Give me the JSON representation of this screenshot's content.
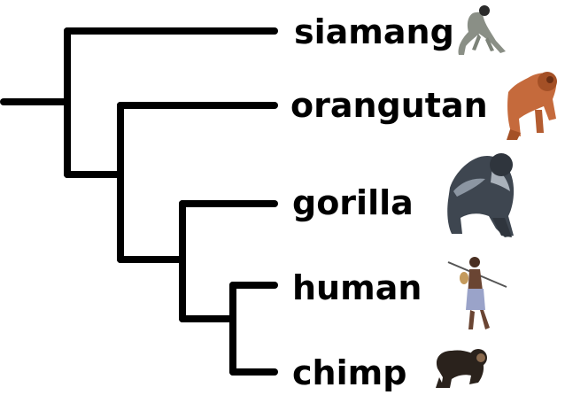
{
  "tree": {
    "line_color": "#000000",
    "taxa": [
      {
        "label": "siamang",
        "icon": "siamang-gibbon-illustration"
      },
      {
        "label": "orangutan",
        "icon": "orangutan-illustration"
      },
      {
        "label": "gorilla",
        "icon": "gorilla-illustration"
      },
      {
        "label": "human",
        "icon": "human-hunter-illustration"
      },
      {
        "label": "chimp",
        "icon": "chimpanzee-illustration"
      }
    ]
  }
}
